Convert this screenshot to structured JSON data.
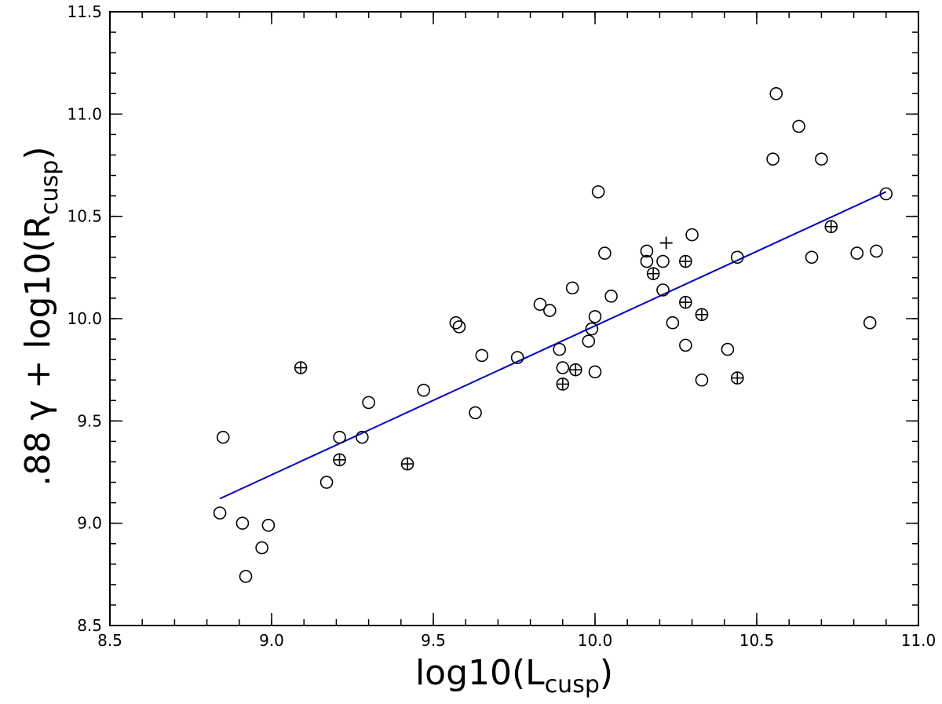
{
  "chart_data": {
    "type": "scatter",
    "xlabel": {
      "main": "log10(L",
      "sub": "cusp",
      "close": ")"
    },
    "ylabel": {
      "main": ".88 γ + log10(R",
      "sub": "cusp",
      "close": ")"
    },
    "xlim": [
      8.5,
      11.0
    ],
    "ylim": [
      8.5,
      11.5
    ],
    "x_ticks": [
      "8.5",
      "9.0",
      "9.5",
      "10.0",
      "10.5",
      "11.0"
    ],
    "y_ticks": [
      "8.5",
      "9.0",
      "9.5",
      "10.0",
      "10.5",
      "11.0",
      "11.5"
    ],
    "x_minor_step": 0.1,
    "y_minor_step": 0.1,
    "grid": false,
    "fit_line": {
      "color": "#0000cc",
      "x": [
        8.84,
        10.9
      ],
      "y": [
        9.12,
        10.62
      ]
    },
    "series": [
      {
        "marker": "open-circle",
        "points": [
          [
            8.85,
            9.42
          ],
          [
            8.84,
            9.05
          ],
          [
            8.91,
            9.0
          ],
          [
            8.92,
            8.74
          ],
          [
            8.97,
            8.88
          ],
          [
            8.99,
            8.99
          ],
          [
            9.17,
            9.2
          ],
          [
            9.21,
            9.42
          ],
          [
            9.28,
            9.42
          ],
          [
            9.3,
            9.59
          ],
          [
            9.47,
            9.65
          ],
          [
            9.57,
            9.98
          ],
          [
            9.58,
            9.96
          ],
          [
            9.63,
            9.54
          ],
          [
            9.65,
            9.82
          ],
          [
            9.76,
            9.81
          ],
          [
            9.83,
            10.07
          ],
          [
            9.86,
            10.04
          ],
          [
            9.89,
            9.85
          ],
          [
            9.9,
            9.76
          ],
          [
            9.93,
            10.15
          ],
          [
            9.98,
            9.89
          ],
          [
            9.99,
            9.95
          ],
          [
            10.0,
            10.01
          ],
          [
            10.0,
            9.74
          ],
          [
            10.01,
            10.62
          ],
          [
            10.03,
            10.32
          ],
          [
            10.05,
            10.11
          ],
          [
            10.16,
            10.28
          ],
          [
            10.16,
            10.33
          ],
          [
            10.21,
            10.28
          ],
          [
            10.21,
            10.14
          ],
          [
            10.24,
            9.98
          ],
          [
            10.28,
            9.87
          ],
          [
            10.3,
            10.41
          ],
          [
            10.33,
            9.7
          ],
          [
            10.41,
            9.85
          ],
          [
            10.44,
            10.3
          ],
          [
            10.55,
            10.78
          ],
          [
            10.56,
            11.1
          ],
          [
            10.63,
            10.94
          ],
          [
            10.67,
            10.3
          ],
          [
            10.7,
            10.78
          ],
          [
            10.81,
            10.32
          ],
          [
            10.85,
            9.98
          ],
          [
            10.87,
            10.33
          ],
          [
            10.9,
            10.61
          ]
        ]
      },
      {
        "marker": "circle-plus",
        "points": [
          [
            9.09,
            9.76
          ],
          [
            9.21,
            9.31
          ],
          [
            9.42,
            9.29
          ],
          [
            9.9,
            9.68
          ],
          [
            9.94,
            9.75
          ],
          [
            10.18,
            10.22
          ],
          [
            10.28,
            10.28
          ],
          [
            10.28,
            10.08
          ],
          [
            10.33,
            10.02
          ],
          [
            10.44,
            9.71
          ],
          [
            10.73,
            10.45
          ]
        ]
      },
      {
        "marker": "plus",
        "points": [
          [
            10.22,
            10.37
          ]
        ]
      }
    ]
  }
}
